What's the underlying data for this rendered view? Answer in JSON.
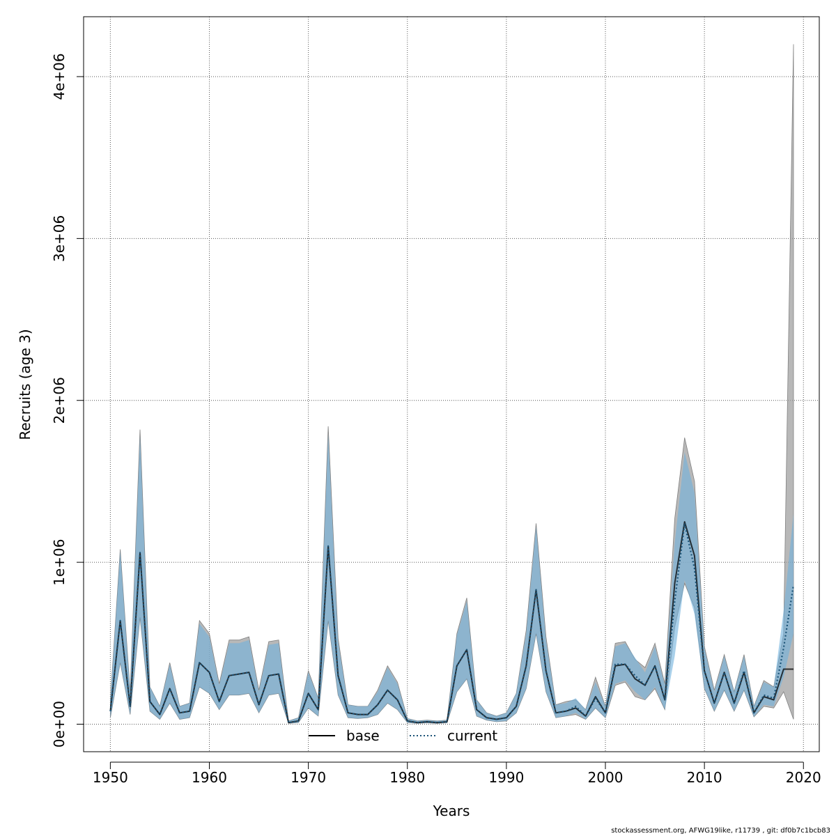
{
  "chart_data": {
    "type": "line",
    "xlabel": "Years",
    "ylabel": "Recruits (age 3)",
    "xlim": [
      1947.3,
      2021.6
    ],
    "ylim": [
      -170000,
      4370000
    ],
    "x_ticks": [
      1950,
      1960,
      1970,
      1980,
      1990,
      2000,
      2010,
      2020
    ],
    "x_tick_labels": [
      "1950",
      "1960",
      "1970",
      "1980",
      "1990",
      "2000",
      "2010",
      "2020"
    ],
    "y_ticks": [
      0,
      1000000,
      2000000,
      3000000,
      4000000
    ],
    "y_tick_labels": [
      "0e+00",
      "1e+06",
      "2e+06",
      "3e+06",
      "4e+06"
    ],
    "grid": true,
    "legend_position": "bottom-center",
    "years": [
      1950,
      1951,
      1952,
      1953,
      1954,
      1955,
      1956,
      1957,
      1958,
      1959,
      1960,
      1961,
      1962,
      1963,
      1964,
      1965,
      1966,
      1967,
      1968,
      1969,
      1970,
      1971,
      1972,
      1973,
      1974,
      1975,
      1976,
      1977,
      1978,
      1979,
      1980,
      1981,
      1982,
      1983,
      1984,
      1985,
      1986,
      1987,
      1988,
      1989,
      1990,
      1991,
      1992,
      1993,
      1994,
      1995,
      1996,
      1997,
      1998,
      1999,
      2000,
      2001,
      2002,
      2003,
      2004,
      2005,
      2006,
      2007,
      2008,
      2009,
      2010,
      2011,
      2012,
      2013,
      2014,
      2015,
      2016,
      2017,
      2018,
      2019
    ],
    "series": [
      {
        "name": "base",
        "color": "#000000",
        "style": "solid",
        "band_color": "#a0a0a0",
        "values": [
          80000,
          640000,
          110000,
          1060000,
          140000,
          60000,
          220000,
          70000,
          80000,
          380000,
          320000,
          140000,
          300000,
          310000,
          320000,
          120000,
          300000,
          310000,
          10000,
          20000,
          190000,
          90000,
          1100000,
          300000,
          70000,
          60000,
          60000,
          120000,
          210000,
          150000,
          20000,
          10000,
          15000,
          10000,
          15000,
          360000,
          460000,
          90000,
          40000,
          30000,
          40000,
          110000,
          360000,
          830000,
          330000,
          70000,
          80000,
          100000,
          50000,
          170000,
          70000,
          360000,
          370000,
          280000,
          240000,
          360000,
          150000,
          870000,
          1250000,
          1040000,
          330000,
          130000,
          320000,
          130000,
          320000,
          70000,
          170000,
          150000,
          340000,
          340000
        ],
        "lower": [
          40000,
          380000,
          60000,
          660000,
          80000,
          30000,
          130000,
          30000,
          40000,
          230000,
          190000,
          90000,
          180000,
          180000,
          190000,
          70000,
          180000,
          190000,
          5000,
          10000,
          100000,
          50000,
          640000,
          180000,
          40000,
          35000,
          40000,
          60000,
          130000,
          90000,
          10000,
          5000,
          8000,
          5000,
          8000,
          200000,
          280000,
          50000,
          25000,
          15000,
          20000,
          70000,
          220000,
          560000,
          200000,
          40000,
          50000,
          60000,
          30000,
          100000,
          40000,
          240000,
          260000,
          170000,
          150000,
          220000,
          90000,
          600000,
          870000,
          720000,
          220000,
          80000,
          210000,
          80000,
          210000,
          45000,
          110000,
          100000,
          200000,
          30000
        ],
        "upper": [
          150000,
          1080000,
          200000,
          1820000,
          230000,
          110000,
          380000,
          110000,
          130000,
          640000,
          560000,
          250000,
          520000,
          520000,
          540000,
          210000,
          510000,
          520000,
          20000,
          40000,
          330000,
          160000,
          1840000,
          530000,
          120000,
          110000,
          110000,
          210000,
          360000,
          260000,
          35000,
          20000,
          25000,
          20000,
          25000,
          560000,
          780000,
          150000,
          70000,
          50000,
          70000,
          190000,
          580000,
          1240000,
          540000,
          120000,
          140000,
          150000,
          90000,
          290000,
          110000,
          500000,
          510000,
          400000,
          350000,
          500000,
          250000,
          1270000,
          1770000,
          1500000,
          480000,
          210000,
          430000,
          200000,
          430000,
          110000,
          270000,
          230000,
          560000,
          4200000
        ]
      },
      {
        "name": "current",
        "color": "#1a5276",
        "style": "dotted",
        "band_color": "#6fb0dc",
        "values": [
          80000,
          640000,
          110000,
          1060000,
          140000,
          60000,
          220000,
          70000,
          80000,
          380000,
          320000,
          140000,
          300000,
          310000,
          320000,
          120000,
          300000,
          310000,
          10000,
          20000,
          190000,
          90000,
          1100000,
          300000,
          70000,
          60000,
          60000,
          120000,
          210000,
          150000,
          20000,
          10000,
          15000,
          10000,
          15000,
          360000,
          460000,
          90000,
          40000,
          30000,
          40000,
          110000,
          360000,
          830000,
          330000,
          70000,
          80000,
          110000,
          50000,
          160000,
          70000,
          370000,
          370000,
          300000,
          240000,
          360000,
          150000,
          760000,
          1240000,
          960000,
          330000,
          130000,
          320000,
          130000,
          330000,
          70000,
          180000,
          160000,
          470000,
          860000
        ],
        "lower": [
          40000,
          380000,
          60000,
          660000,
          80000,
          30000,
          130000,
          30000,
          40000,
          230000,
          190000,
          90000,
          180000,
          180000,
          190000,
          70000,
          180000,
          190000,
          5000,
          10000,
          100000,
          50000,
          640000,
          180000,
          40000,
          35000,
          40000,
          60000,
          130000,
          90000,
          10000,
          5000,
          8000,
          5000,
          8000,
          200000,
          280000,
          50000,
          25000,
          15000,
          20000,
          70000,
          220000,
          560000,
          200000,
          40000,
          50000,
          70000,
          30000,
          100000,
          40000,
          250000,
          270000,
          200000,
          150000,
          230000,
          90000,
          420000,
          890000,
          680000,
          220000,
          80000,
          210000,
          80000,
          210000,
          45000,
          120000,
          110000,
          290000,
          560000
        ],
        "upper": [
          150000,
          1070000,
          200000,
          1780000,
          230000,
          110000,
          370000,
          110000,
          130000,
          620000,
          540000,
          240000,
          500000,
          500000,
          520000,
          200000,
          490000,
          500000,
          20000,
          40000,
          320000,
          160000,
          1790000,
          510000,
          120000,
          110000,
          110000,
          200000,
          350000,
          250000,
          35000,
          20000,
          25000,
          20000,
          25000,
          550000,
          760000,
          150000,
          70000,
          50000,
          70000,
          190000,
          560000,
          1220000,
          520000,
          120000,
          130000,
          160000,
          90000,
          260000,
          110000,
          480000,
          500000,
          410000,
          320000,
          480000,
          240000,
          1120000,
          1680000,
          1430000,
          470000,
          200000,
          420000,
          200000,
          420000,
          110000,
          260000,
          230000,
          700000,
          1300000
        ]
      }
    ]
  },
  "footer_text": "stockassessment.org, AFWG19like, r11739 , git: df0b7c1bcb83"
}
